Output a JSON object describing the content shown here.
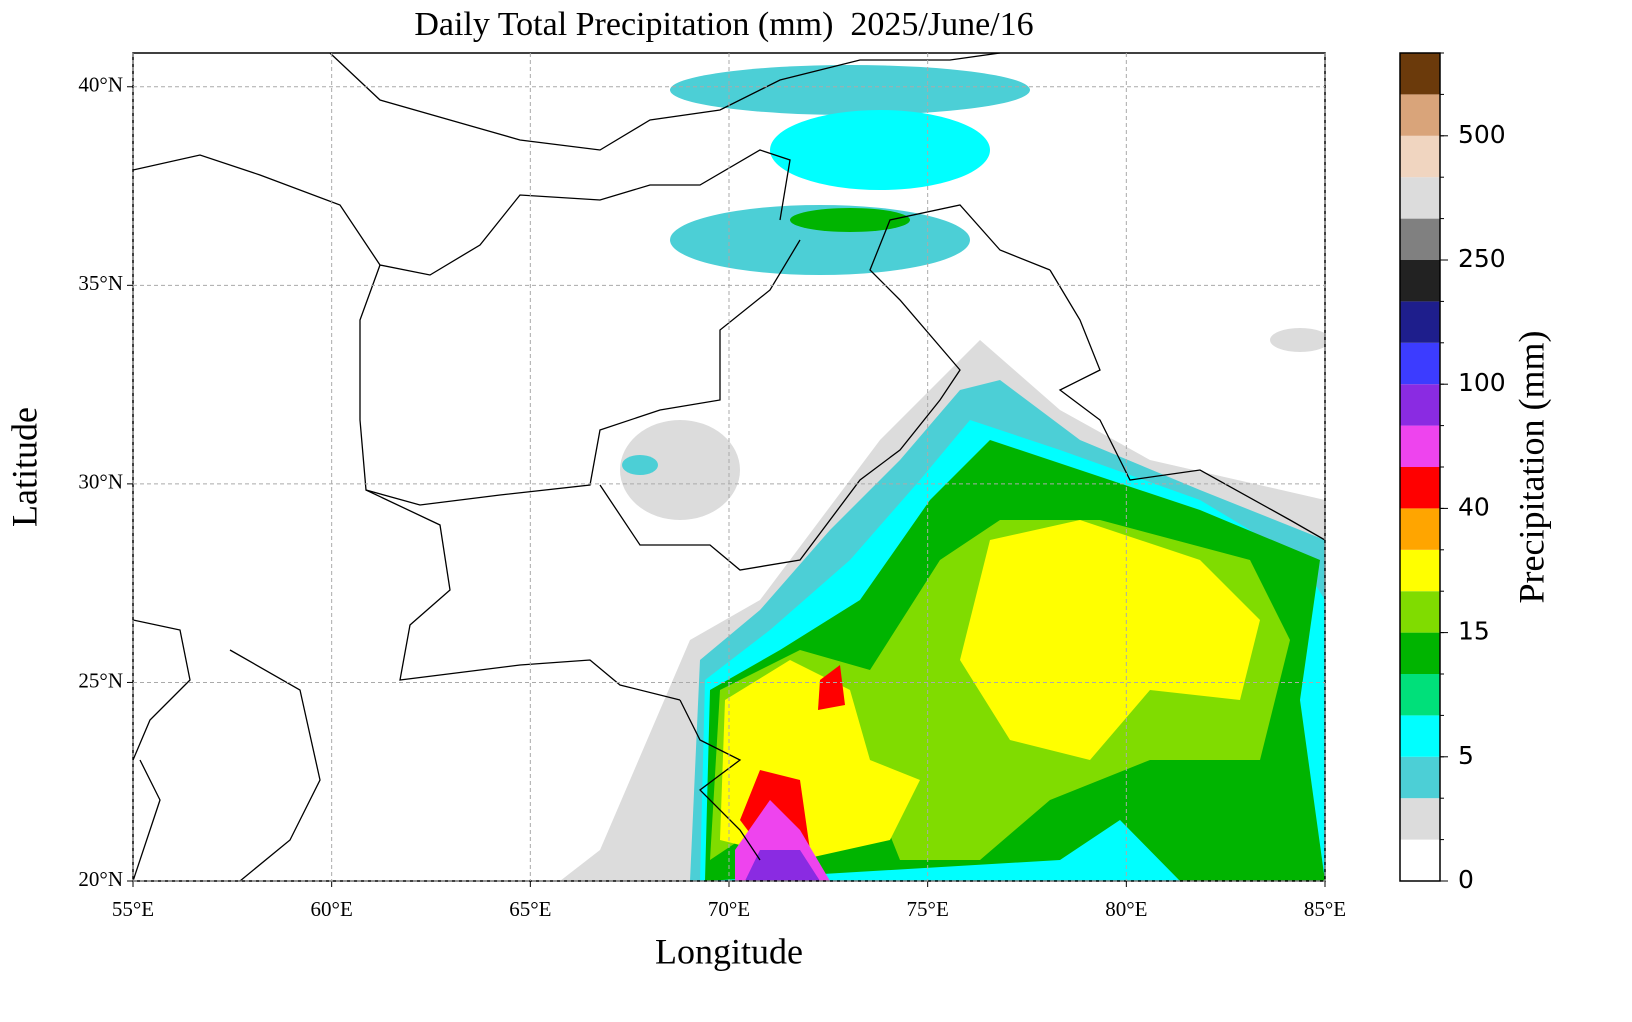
{
  "map": {
    "title": "Daily Total Precipitation (mm)  2025/June/16",
    "x_label": "Longitude",
    "y_label": "Latitude",
    "xlim": [
      55,
      85
    ],
    "ylim": [
      20,
      40.85
    ],
    "xticks": [
      {
        "value": 55,
        "label": "55°E"
      },
      {
        "value": 60,
        "label": "60°E"
      },
      {
        "value": 65,
        "label": "65°E"
      },
      {
        "value": 70,
        "label": "70°E"
      },
      {
        "value": 75,
        "label": "75°E"
      },
      {
        "value": 80,
        "label": "80°E"
      },
      {
        "value": 85,
        "label": "85°E"
      }
    ],
    "yticks": [
      {
        "value": 20,
        "label": "20°N"
      },
      {
        "value": 25,
        "label": "25°N"
      },
      {
        "value": 30,
        "label": "30°N"
      },
      {
        "value": 35,
        "label": "35°N"
      },
      {
        "value": 40,
        "label": "40°N"
      }
    ],
    "grid": true,
    "colorbar": {
      "label": "Precipitation (mm)",
      "levels": [
        0,
        1,
        2,
        5,
        7,
        10,
        15,
        20,
        30,
        40,
        50,
        70,
        100,
        150,
        200,
        250,
        300,
        400,
        500,
        600,
        700
      ],
      "colors": [
        "#ffffff",
        "#dcdcdc",
        "#4ccfd6",
        "#00ffff",
        "#00e07a",
        "#00b400",
        "#80dc00",
        "#ffff00",
        "#ffa500",
        "#ff0000",
        "#ee44ee",
        "#8a2be2",
        "#3c3cff",
        "#1e1e8c",
        "#222222",
        "#808080",
        "#dcdcdc",
        "#f0d5c0",
        "#d9a47a",
        "#6b3a0b"
      ],
      "ticks": [
        0,
        5,
        15,
        40,
        100,
        250,
        500
      ]
    }
  }
}
